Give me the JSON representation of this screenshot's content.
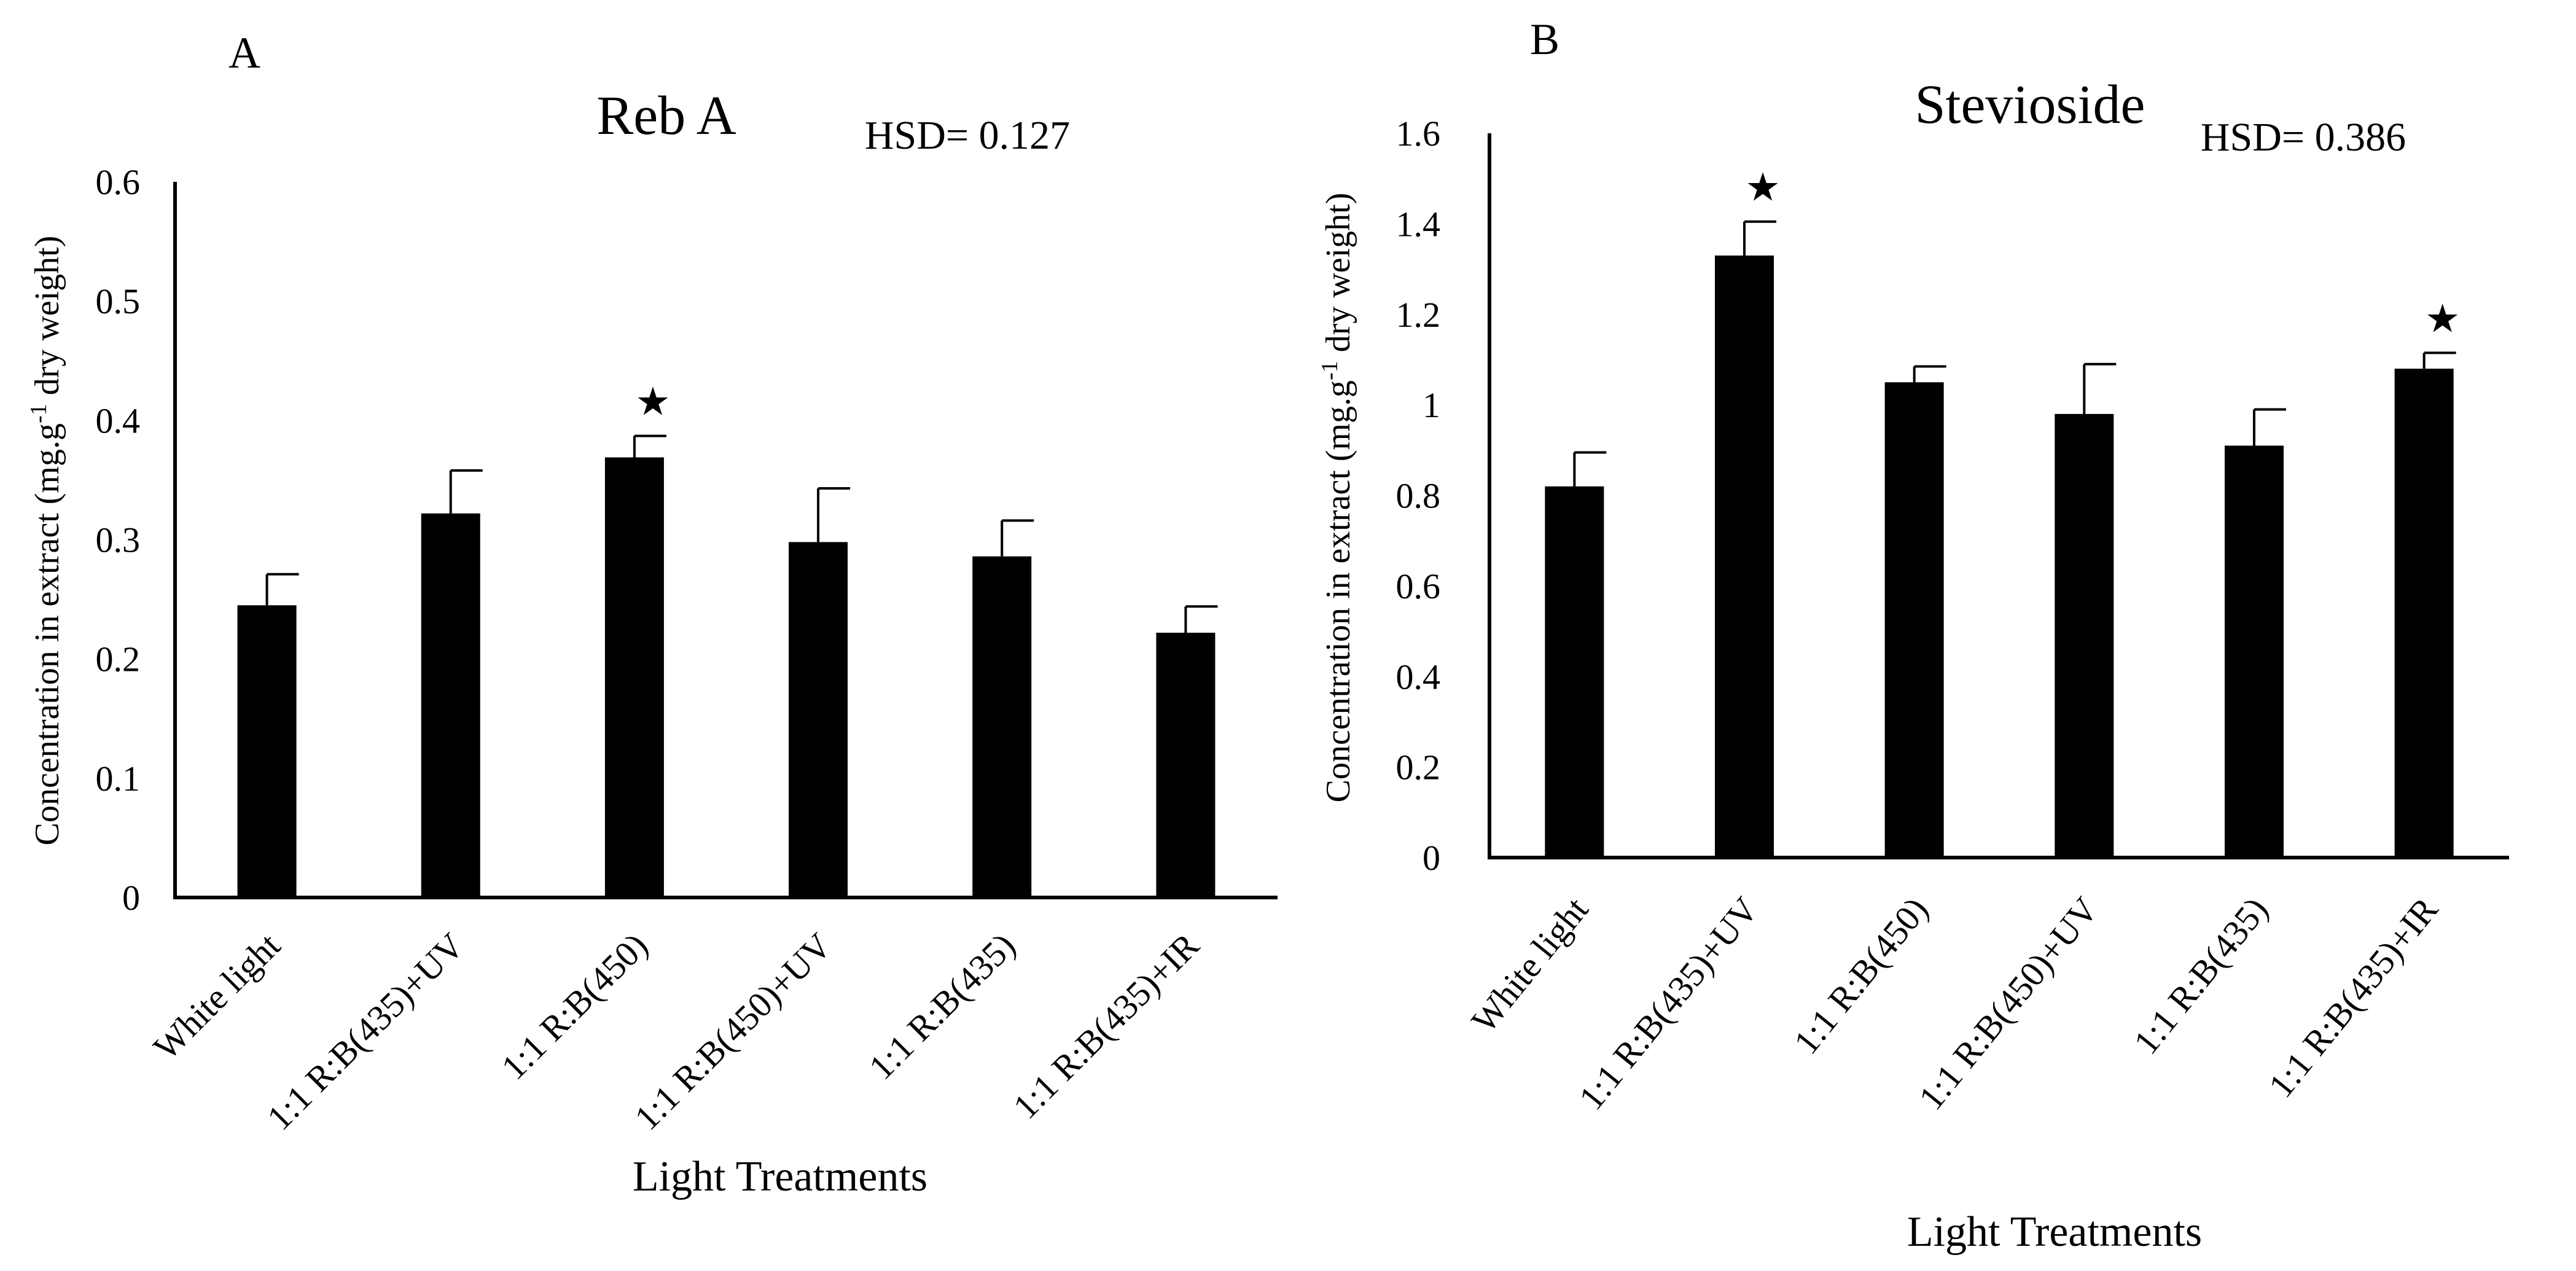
{
  "chart_data": [
    {
      "panel_label": "A",
      "type": "bar",
      "title": "Reb A",
      "hsd_text": "HSD= 0.127",
      "xlabel": "Light Treatments",
      "ylabel": "Concentration in extract (mg.g-1 dry weight)",
      "ylabel_parts": [
        "Concentration in extract (mg.g",
        "-1",
        " dry weight)"
      ],
      "ylim": [
        0,
        0.6
      ],
      "yticks": [
        0,
        0.1,
        0.2,
        0.3,
        0.4,
        0.5,
        0.6
      ],
      "ytick_labels": [
        "0",
        "0.1",
        "0.2",
        "0.3",
        "0.4",
        "0.5",
        "0.6"
      ],
      "categories": [
        "White light",
        "1:1 R:B(435)+UV",
        "1:1 R:B(450)",
        "1:1 R:B(450)+UV",
        "1:1 R:B(435)",
        "1:1 R:B(435)+IR"
      ],
      "values": [
        0.245,
        0.322,
        0.369,
        0.298,
        0.286,
        0.222
      ],
      "errors": [
        0.026,
        0.036,
        0.018,
        0.045,
        0.03,
        0.022
      ],
      "significant": [
        false,
        false,
        true,
        false,
        false,
        false
      ],
      "significance_marker": "★",
      "bar_color": "#000000"
    },
    {
      "panel_label": "B",
      "type": "bar",
      "title": "Stevioside",
      "hsd_text": "HSD= 0.386",
      "xlabel": "Light Treatments",
      "ylabel": "Concentration in extract (mg.g-1 dry weight)",
      "ylabel_parts": [
        "Concentration in extract (mg.g",
        "-1",
        " dry weight)"
      ],
      "ylim": [
        0,
        1.6
      ],
      "yticks": [
        0,
        0.2,
        0.4,
        0.6,
        0.8,
        1.0,
        1.2,
        1.4,
        1.6
      ],
      "ytick_labels": [
        "0",
        "0.2",
        "0.4",
        "0.6",
        "0.8",
        "1",
        "1.2",
        "1.4",
        "1.6"
      ],
      "categories": [
        "White light",
        "1:1 R:B(435)+UV",
        "1:1 R:B(450)",
        "1:1 R:B(450)+UV",
        "1:1 R:B(435)",
        "1:1 R:B(435)+IR"
      ],
      "values": [
        0.82,
        1.33,
        1.05,
        0.98,
        0.91,
        1.08
      ],
      "errors": [
        0.075,
        0.075,
        0.035,
        0.11,
        0.08,
        0.035
      ],
      "significant": [
        false,
        true,
        false,
        false,
        false,
        true
      ],
      "significance_marker": "★",
      "bar_color": "#000000"
    }
  ]
}
